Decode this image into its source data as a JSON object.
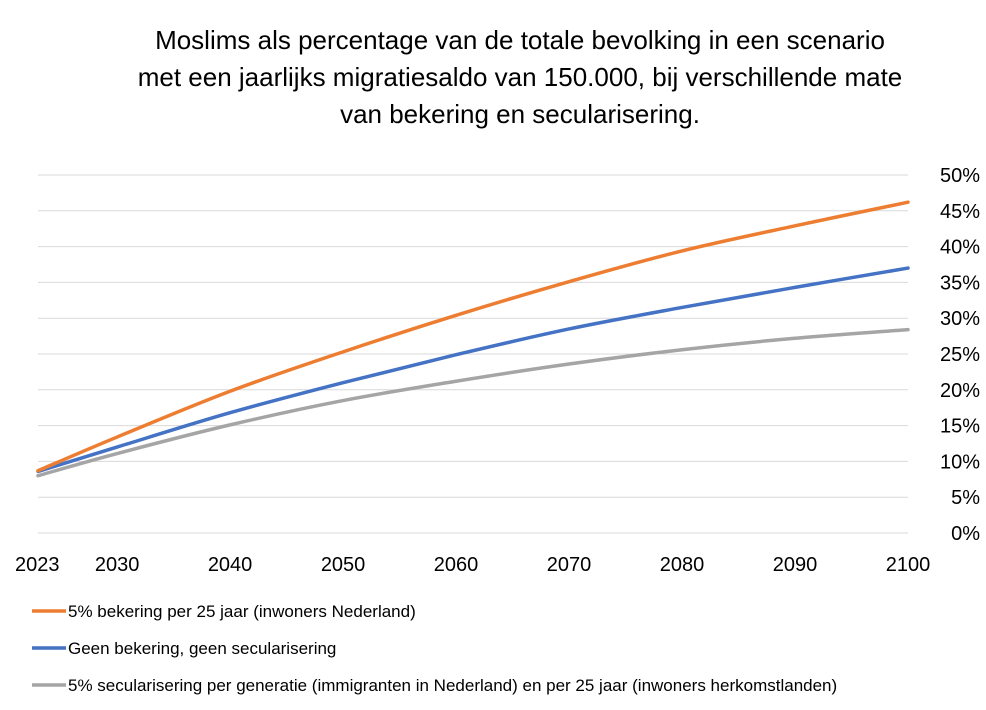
{
  "chart_data": {
    "type": "line",
    "title": "Moslims als percentage van de totale bevolking in een scenario met een jaarlijks migratiesaldo van 150.000, bij verschillende mate van bekering en secularisering.",
    "xlabel": "",
    "ylabel": "",
    "x_ticks": [
      2023,
      2030,
      2040,
      2050,
      2060,
      2070,
      2080,
      2090,
      2100
    ],
    "x_tick_labels": [
      "2023",
      "2030",
      "2040",
      "2050",
      "2060",
      "2070",
      "2080",
      "2090",
      "2100"
    ],
    "xlim": [
      2023,
      2100
    ],
    "y_ticks": [
      0,
      5,
      10,
      15,
      20,
      25,
      30,
      35,
      40,
      45,
      50
    ],
    "y_tick_labels": [
      "0%",
      "5%",
      "10%",
      "15%",
      "20%",
      "25%",
      "30%",
      "35%",
      "40%",
      "45%",
      "50%"
    ],
    "ylim": [
      0,
      50
    ],
    "y_axis_side": "right",
    "grid": "horizontal",
    "legend_position": "bottom",
    "x": [
      2023,
      2030,
      2040,
      2050,
      2060,
      2070,
      2080,
      2090,
      2100
    ],
    "series": [
      {
        "name": "5% bekering per 25 jaar (inwoners Nederland)",
        "color": "#ED7D31",
        "values": [
          8.7,
          13.4,
          19.8,
          25.3,
          30.4,
          35.1,
          39.4,
          42.9,
          46.2
        ]
      },
      {
        "name": "Geen bekering, geen secularisering",
        "color": "#4472C4",
        "values": [
          8.6,
          12.0,
          16.8,
          21.0,
          24.9,
          28.5,
          31.5,
          34.3,
          37.0
        ]
      },
      {
        "name": "5% secularisering per generatie (immigranten in Nederland) en per 25 jaar (inwoners herkomstlanden)",
        "color": "#A5A5A5",
        "values": [
          8.0,
          11.1,
          15.1,
          18.5,
          21.2,
          23.6,
          25.6,
          27.2,
          28.4
        ]
      }
    ]
  },
  "gridline_color": "#D9D9D9"
}
